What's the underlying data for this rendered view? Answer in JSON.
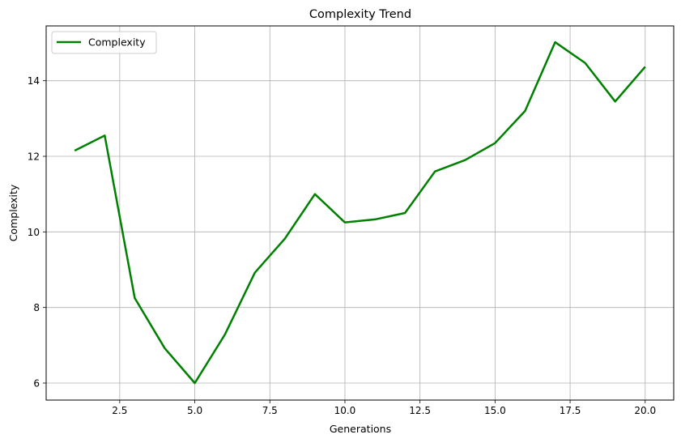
{
  "chart_data": {
    "type": "line",
    "title": "Complexity Trend",
    "xlabel": "Generations",
    "ylabel": "Complexity",
    "xlim": [
      0.05,
      20.95
    ],
    "ylim": [
      5.55,
      15.45
    ],
    "xticks": [
      2.5,
      5.0,
      7.5,
      10.0,
      12.5,
      15.0,
      17.5,
      20.0
    ],
    "xtick_labels": [
      "2.5",
      "5.0",
      "7.5",
      "10.0",
      "12.5",
      "15.0",
      "17.5",
      "20.0"
    ],
    "yticks": [
      6,
      8,
      10,
      12,
      14
    ],
    "ytick_labels": [
      "6",
      "8",
      "10",
      "12",
      "14"
    ],
    "grid": true,
    "legend_position": "top-left",
    "series": [
      {
        "name": "Complexity",
        "color": "#008000",
        "x": [
          1,
          2,
          3,
          4,
          5,
          6,
          7,
          8,
          9,
          10,
          11,
          12,
          13,
          14,
          15,
          16,
          17,
          18,
          19,
          20
        ],
        "y": [
          12.15,
          12.55,
          8.25,
          6.92,
          6.0,
          7.28,
          8.92,
          9.82,
          11.0,
          10.25,
          10.33,
          10.5,
          11.6,
          11.9,
          12.35,
          13.2,
          15.02,
          14.47,
          13.45,
          14.37
        ]
      }
    ]
  }
}
